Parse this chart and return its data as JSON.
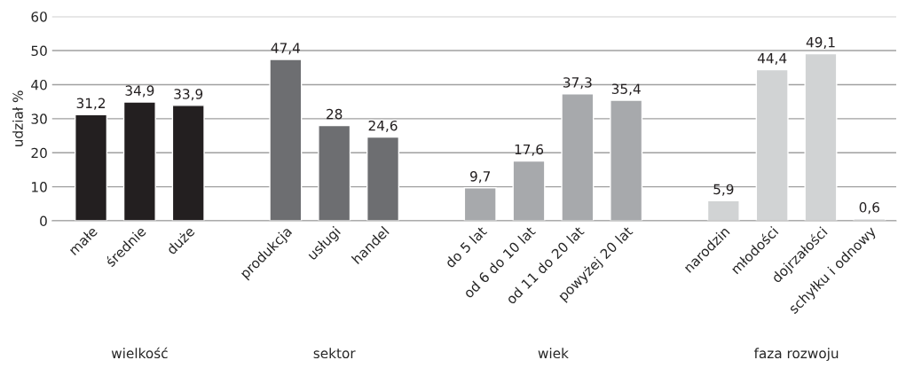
{
  "chart_data": {
    "type": "bar",
    "ylabel": "udział %",
    "categories": [
      "małe",
      "średnie",
      "duże",
      null,
      "produkcja",
      "usługi",
      "handel",
      null,
      "do 5 lat",
      "od 6 do 10 lat",
      "od 11 do 20 lat",
      "powyżej 20 lat",
      null,
      "narodzin",
      "młodości",
      "dojrzałości",
      "schyłku i odnowy"
    ],
    "values": [
      31.2,
      34.9,
      33.9,
      null,
      47.4,
      28,
      24.6,
      null,
      9.7,
      17.6,
      37.3,
      35.4,
      null,
      5.9,
      44.4,
      49.1,
      0.6
    ],
    "colors": [
      "#231f20",
      "#231f20",
      "#231f20",
      null,
      "#6d6e71",
      "#6d6e71",
      "#6d6e71",
      null,
      "#a7a9ac",
      "#a7a9ac",
      "#a7a9ac",
      "#a7a9ac",
      null,
      "#d1d3d4",
      "#d1d3d4",
      "#d1d3d4",
      "#d1d3d4"
    ],
    "annotations": [
      "wielkość",
      "sektor",
      "wiek",
      "faza rozwoju"
    ],
    "value_labels": [
      "31,2",
      "34,9",
      "33,9",
      null,
      "47,4",
      "28",
      "24,6",
      null,
      "9,7",
      "17,6",
      "37,3",
      "35,4",
      null,
      "5,9",
      "44,4",
      "49,1",
      "0,6"
    ],
    "ylim": [
      0,
      60
    ],
    "yticks": [
      0,
      10,
      20,
      30,
      40,
      50,
      60
    ],
    "grid": "y"
  }
}
